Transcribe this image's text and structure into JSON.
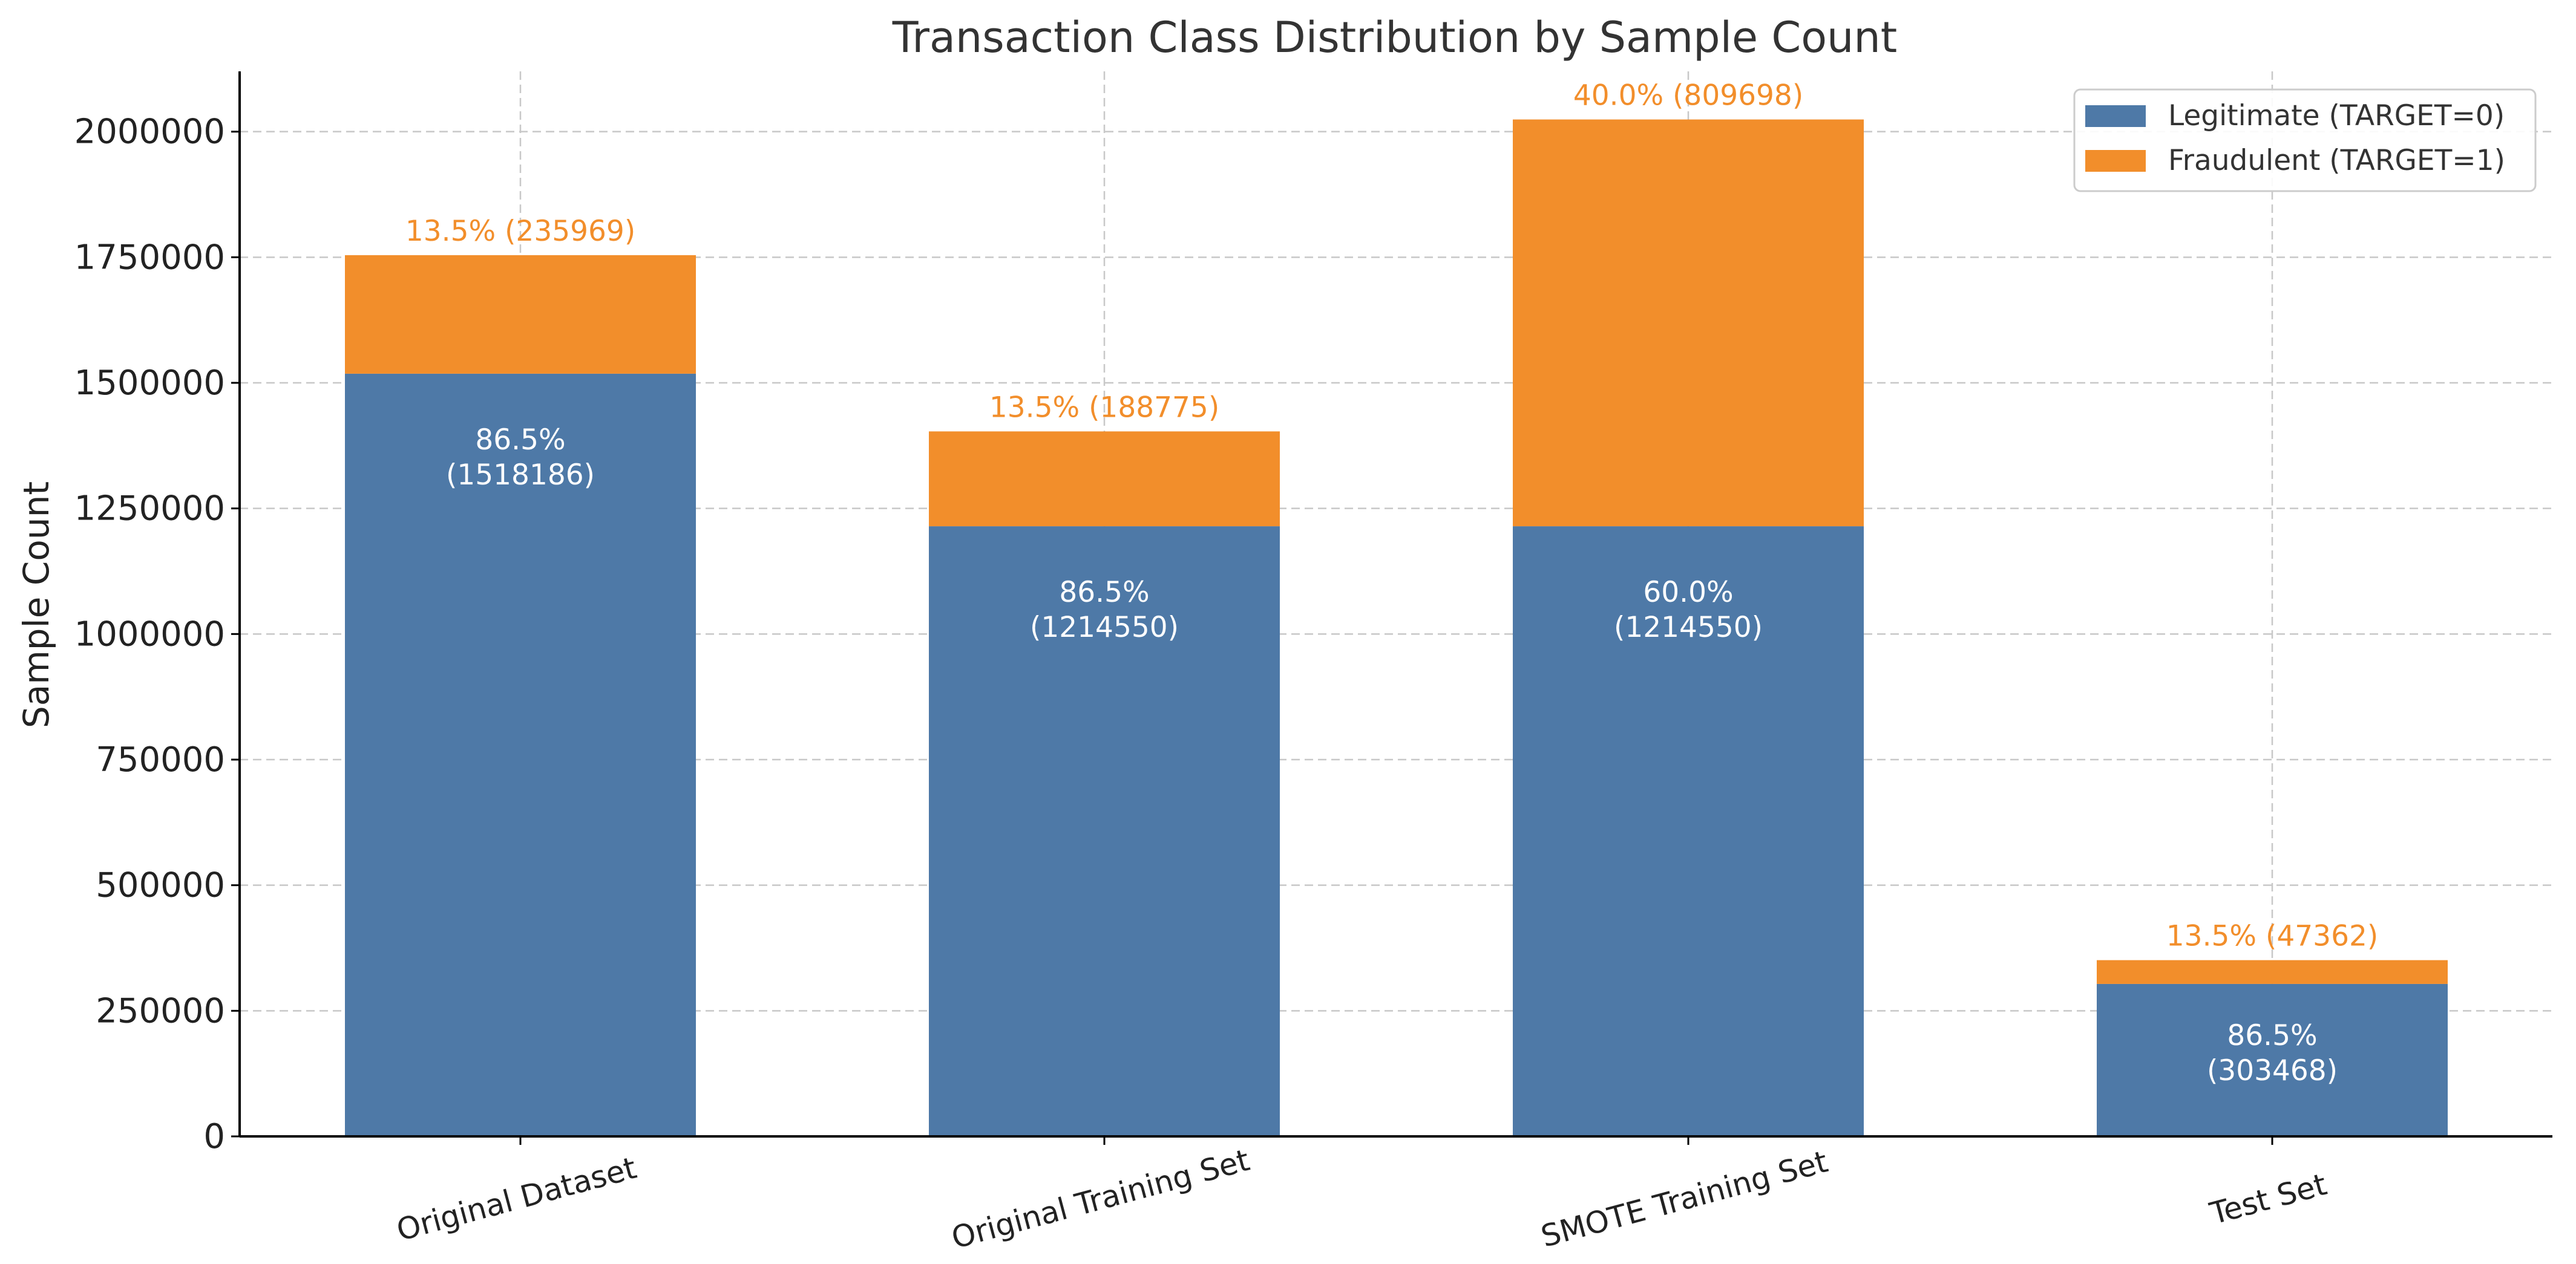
{
  "chart_data": {
    "type": "bar",
    "stacked": true,
    "title": "Transaction Class Distribution by Sample Count",
    "xlabel": "",
    "ylabel": "Sample Count",
    "ylim": [
      0,
      2120000
    ],
    "yticks": [
      0,
      250000,
      500000,
      750000,
      1000000,
      1250000,
      1500000,
      1750000,
      2000000
    ],
    "grid": true,
    "legend_position": "top-right",
    "categories": [
      "Original Dataset",
      "Original Training Set",
      "SMOTE Training Set",
      "Test Set"
    ],
    "series": [
      {
        "name": "Legitimate (TARGET=0)",
        "color": "#4e79a7",
        "values": [
          1518186,
          1214550,
          1214550,
          303468
        ],
        "labels": [
          "86.5%\n(1518186)",
          "86.5%\n(1214550)",
          "60.0%\n(1214550)",
          "86.5%\n(303468)"
        ]
      },
      {
        "name": "Fraudulent (TARGET=1)",
        "color": "#f28e2b",
        "values": [
          235969,
          188775,
          809698,
          47362
        ],
        "labels": [
          "13.5% (235969)",
          "13.5% (188775)",
          "40.0% (809698)",
          "13.5% (47362)"
        ]
      }
    ]
  }
}
